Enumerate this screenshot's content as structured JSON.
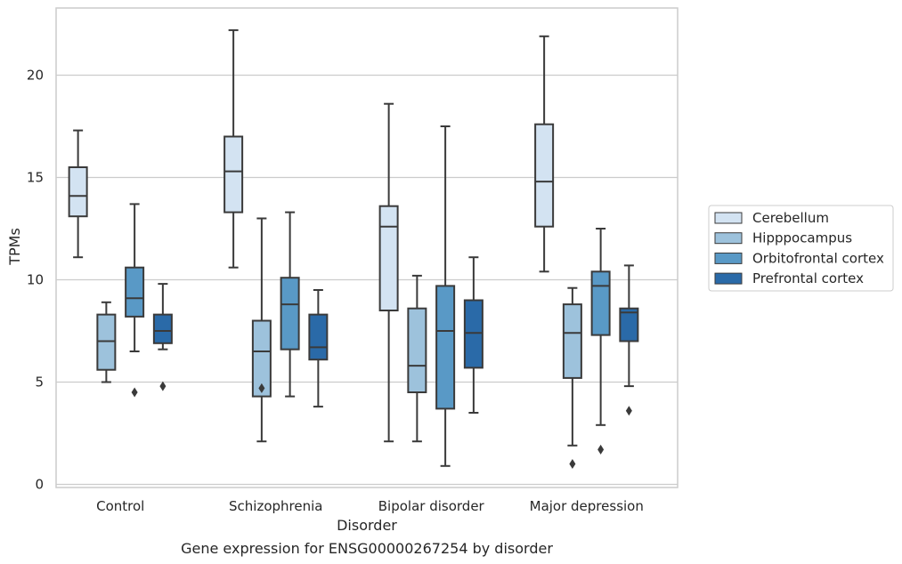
{
  "chart_data": {
    "type": "box",
    "title": "",
    "caption": "Gene expression for ENSG00000267254 by disorder",
    "xlabel": "Disorder",
    "ylabel": "TPMs",
    "ylim": [
      -0.1,
      23.3
    ],
    "yticks": [
      0,
      5,
      10,
      15,
      20
    ],
    "grid": "horizontal",
    "legend_position": "right",
    "categories": [
      "Control",
      "Schizophrenia",
      "Bipolar disorder",
      "Major depression"
    ],
    "series": [
      {
        "name": "Cerebellum",
        "color": "#d3e3f2",
        "boxes": [
          {
            "whisker_low": 11.1,
            "q1": 13.1,
            "median": 14.1,
            "q3": 15.5,
            "whisker_high": 17.3,
            "outliers": []
          },
          {
            "whisker_low": 10.6,
            "q1": 13.3,
            "median": 15.3,
            "q3": 17.0,
            "whisker_high": 22.2,
            "outliers": []
          },
          {
            "whisker_low": 2.1,
            "q1": 8.5,
            "median": 12.6,
            "q3": 13.6,
            "whisker_high": 18.6,
            "outliers": []
          },
          {
            "whisker_low": 10.4,
            "q1": 12.6,
            "median": 14.8,
            "q3": 17.6,
            "whisker_high": 21.9,
            "outliers": []
          }
        ]
      },
      {
        "name": "Hipppocampus",
        "color": "#9dc2dc",
        "boxes": [
          {
            "whisker_low": 5.0,
            "q1": 5.6,
            "median": 7.0,
            "q3": 8.3,
            "whisker_high": 8.9,
            "outliers": []
          },
          {
            "whisker_low": 2.1,
            "q1": 4.3,
            "median": 6.5,
            "q3": 8.0,
            "whisker_high": 13.0,
            "outliers": [
              4.7
            ]
          },
          {
            "whisker_low": 2.1,
            "q1": 4.5,
            "median": 5.8,
            "q3": 8.6,
            "whisker_high": 10.2,
            "outliers": []
          },
          {
            "whisker_low": 1.9,
            "q1": 5.2,
            "median": 7.4,
            "q3": 8.8,
            "whisker_high": 9.6,
            "outliers": [
              1.0
            ]
          }
        ]
      },
      {
        "name": "Orbitofrontal cortex",
        "color": "#5999c6",
        "boxes": [
          {
            "whisker_low": 6.5,
            "q1": 8.2,
            "median": 9.1,
            "q3": 10.6,
            "whisker_high": 13.7,
            "outliers": [
              4.5
            ]
          },
          {
            "whisker_low": 4.3,
            "q1": 6.6,
            "median": 8.8,
            "q3": 10.1,
            "whisker_high": 13.3,
            "outliers": []
          },
          {
            "whisker_low": 0.9,
            "q1": 3.7,
            "median": 7.5,
            "q3": 9.7,
            "whisker_high": 17.5,
            "outliers": []
          },
          {
            "whisker_low": 2.9,
            "q1": 7.3,
            "median": 9.7,
            "q3": 10.4,
            "whisker_high": 12.5,
            "outliers": [
              1.7
            ]
          }
        ]
      },
      {
        "name": "Prefrontal cortex",
        "color": "#2a6aa8",
        "boxes": [
          {
            "whisker_low": 6.6,
            "q1": 6.9,
            "median": 7.5,
            "q3": 8.3,
            "whisker_high": 9.8,
            "outliers": [
              4.8
            ]
          },
          {
            "whisker_low": 3.8,
            "q1": 6.1,
            "median": 6.7,
            "q3": 8.3,
            "whisker_high": 9.5,
            "outliers": []
          },
          {
            "whisker_low": 3.5,
            "q1": 5.7,
            "median": 7.4,
            "q3": 9.0,
            "whisker_high": 11.1,
            "outliers": []
          },
          {
            "whisker_low": 4.8,
            "q1": 7.0,
            "median": 8.4,
            "q3": 8.6,
            "whisker_high": 10.7,
            "outliers": [
              3.6
            ]
          }
        ]
      }
    ]
  }
}
